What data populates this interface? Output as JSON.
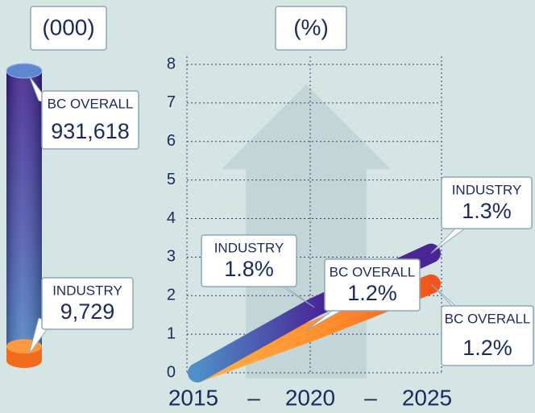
{
  "chart_data": [
    {
      "type": "cylinder",
      "title": "(000)",
      "categories": [
        "BC OVERALL",
        "INDUSTRY"
      ],
      "values": [
        931618,
        9729
      ],
      "value_labels": [
        "931,618",
        "9,729"
      ],
      "colors": [
        "#4a2a9a",
        "#f26a1b"
      ]
    },
    {
      "type": "line",
      "title": "(%)",
      "categories": [
        "2015",
        "2020",
        "2025"
      ],
      "x_separator": "–",
      "series": [
        {
          "name": "INDUSTRY",
          "color": "#4a2596",
          "values": [
            0,
            1.7,
            3.1
          ]
        },
        {
          "name": "BC OVERALL",
          "color": "#f26a1b",
          "values": [
            0,
            1.1,
            2.3
          ]
        }
      ],
      "ylim": [
        0,
        8
      ],
      "yticks": [
        0,
        1,
        2,
        3,
        4,
        5,
        6,
        7,
        8
      ],
      "grid": true,
      "callouts": [
        {
          "name": "INDUSTRY",
          "label": "1.8%"
        },
        {
          "name": "BC OVERALL",
          "label": "1.2%"
        },
        {
          "name": "INDUSTRY",
          "label": "1.3%"
        },
        {
          "name": "BC OVERALL",
          "label": "1.2%"
        }
      ]
    }
  ]
}
